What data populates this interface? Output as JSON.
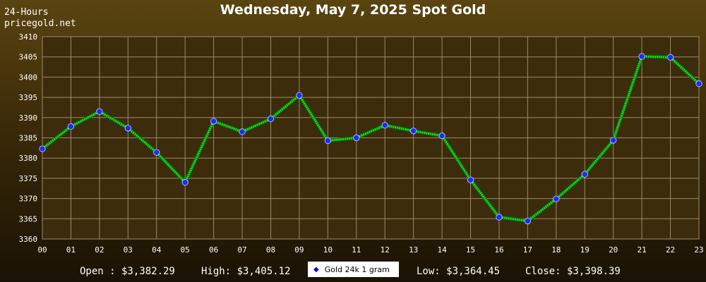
{
  "header": {
    "period": "24-Hours",
    "site": "pricegold.net"
  },
  "stats": {
    "open": "Open : $3,382.29",
    "high": "High: $3,405.12",
    "low": "Low: $3,364.45",
    "close": "Close: $3,398.39"
  },
  "colors": {
    "line": "#22dd22",
    "marker": "#1a2cff",
    "grid": "#9c8c6c",
    "plot_background": "#3c2c0c"
  },
  "chart_data": {
    "type": "line",
    "title": "Wednesday, May 7, 2025 Spot Gold",
    "xlabel": "",
    "ylabel": "",
    "categories": [
      "00",
      "01",
      "02",
      "03",
      "04",
      "05",
      "06",
      "07",
      "08",
      "09",
      "10",
      "11",
      "12",
      "13",
      "14",
      "15",
      "16",
      "17",
      "18",
      "19",
      "20",
      "21",
      "22",
      "23"
    ],
    "ylim": [
      3360,
      3410
    ],
    "yticks": [
      3360,
      3365,
      3370,
      3375,
      3380,
      3385,
      3390,
      3395,
      3400,
      3405,
      3410
    ],
    "grid": true,
    "legend": "bottom-center",
    "series": [
      {
        "name": "Gold 24k 1 gram",
        "values": [
          3382.29,
          3387.8,
          3391.5,
          3387.4,
          3381.4,
          3374.0,
          3389.1,
          3386.5,
          3389.7,
          3395.5,
          3384.3,
          3385.0,
          3388.1,
          3386.7,
          3385.5,
          3374.6,
          3365.4,
          3364.45,
          3369.9,
          3376.0,
          3384.4,
          3405.12,
          3404.9,
          3398.39
        ]
      }
    ]
  }
}
